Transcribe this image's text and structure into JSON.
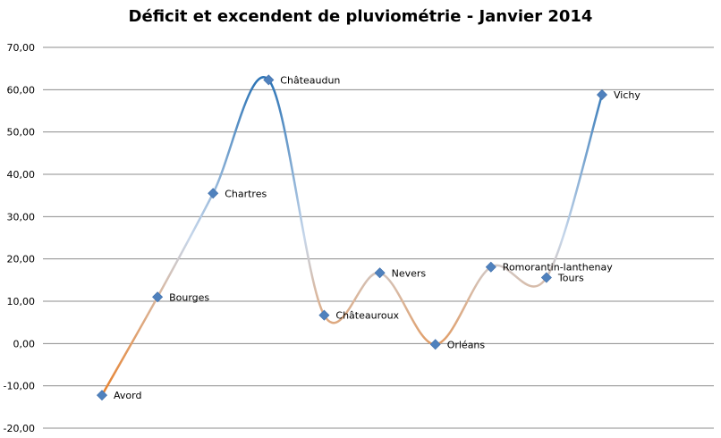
{
  "chart_data": {
    "type": "line",
    "title": "Déficit et excendent de pluviométrie - Janvier 2014",
    "xlabel": "",
    "ylabel": "",
    "ylim": [
      -20,
      70
    ],
    "y_ticks": [
      "-20,00",
      "-10,00",
      "0,00",
      "10,00",
      "20,00",
      "30,00",
      "40,00",
      "50,00",
      "60,00",
      "70,00"
    ],
    "grid": true,
    "legend": "none",
    "smooth": true,
    "colors": {
      "negative": "#e8822e",
      "neutral": "#c6d6ea",
      "positive": "#2e75b6",
      "marker": "#4f81bd",
      "grid": "#8c8c8c"
    },
    "categories": [
      "Avord",
      "Bourges",
      "Chartres",
      "Châteaudun",
      "Châteauroux",
      "Nevers",
      "Orléans",
      "Romorantin-lanthenay",
      "Tours",
      "Vichy"
    ],
    "series": [
      {
        "values": [
          -12.2,
          11.0,
          35.5,
          62.3,
          6.7,
          16.7,
          -0.2,
          18.1,
          15.6,
          58.8
        ]
      }
    ]
  }
}
